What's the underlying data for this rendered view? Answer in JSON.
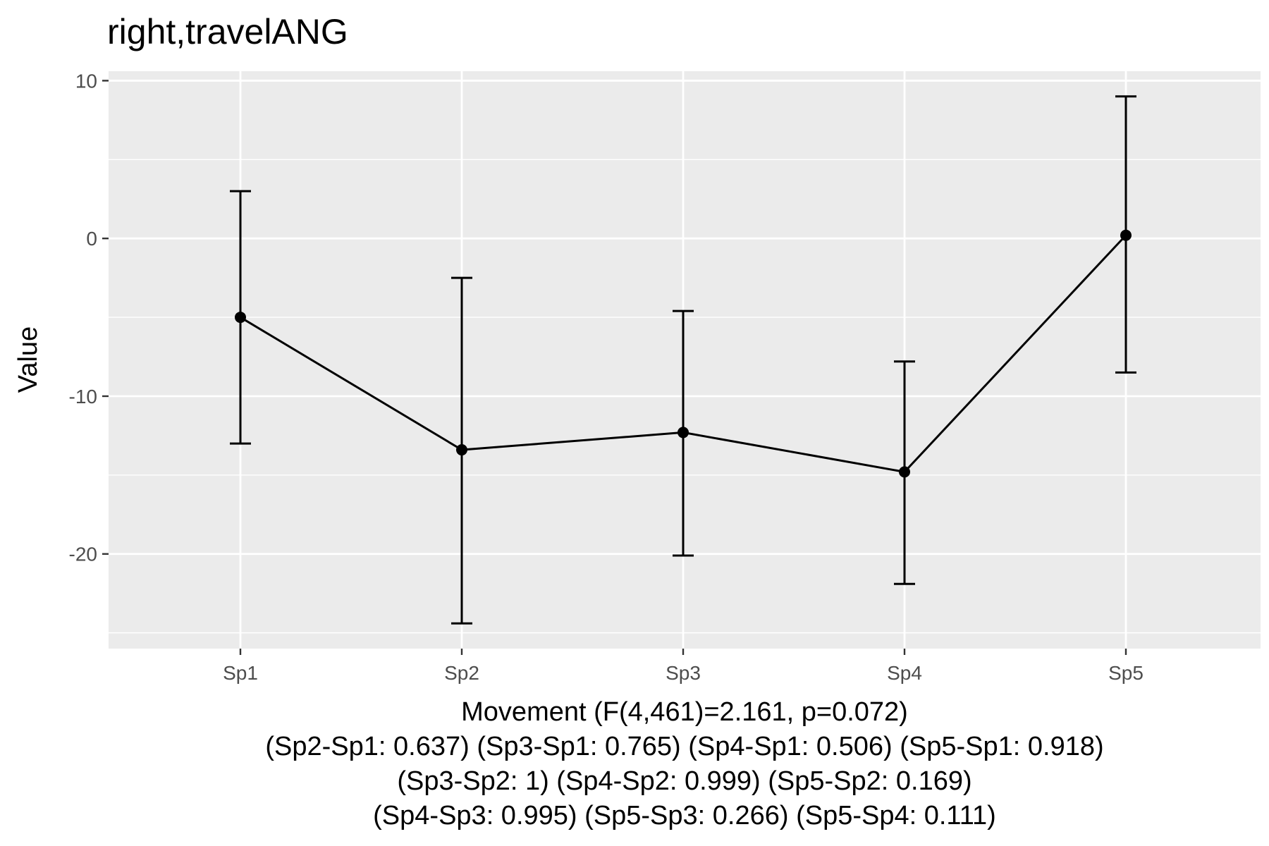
{
  "chart_data": {
    "type": "line",
    "title": "right,travelANG",
    "ylabel": "Value",
    "xlabel_lines": [
      "Movement (F(4,461)=2.161, p=0.072)",
      "(Sp2-Sp1: 0.637) (Sp3-Sp1: 0.765) (Sp4-Sp1: 0.506) (Sp5-Sp1: 0.918)",
      "(Sp3-Sp2: 1) (Sp4-Sp2: 0.999) (Sp5-Sp2: 0.169)",
      "(Sp4-Sp3: 0.995) (Sp5-Sp3: 0.266) (Sp5-Sp4: 0.111)"
    ],
    "categories": [
      "Sp1",
      "Sp2",
      "Sp3",
      "Sp4",
      "Sp5"
    ],
    "values": [
      -5.0,
      -13.4,
      -12.3,
      -14.8,
      0.2
    ],
    "error_lower": [
      -13.0,
      -24.4,
      -20.1,
      -21.9,
      -8.5
    ],
    "error_upper": [
      3.0,
      -2.5,
      -4.6,
      -7.8,
      9.0
    ],
    "ylim": [
      -26.0,
      10.6
    ],
    "yticks": [
      10,
      0,
      -10,
      -20
    ],
    "ytick_labels": [
      "10",
      "0",
      "-10",
      "-20"
    ],
    "grid": true,
    "colors": {
      "panel_background": "#ebebeb",
      "grid": "#ffffff",
      "line": "#000000",
      "tick_text": "#4d4d4d"
    }
  }
}
